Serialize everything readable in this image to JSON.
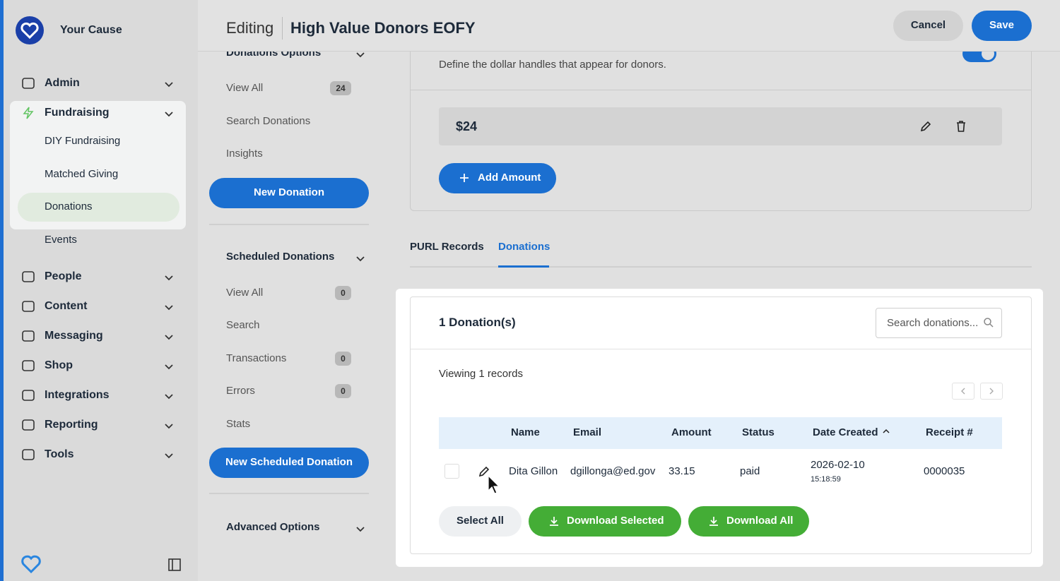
{
  "brand": {
    "name": "Your Cause"
  },
  "nav": [
    {
      "label": "Admin"
    },
    {
      "label": "Fundraising",
      "children": [
        "DIY Fundraising",
        "Matched Giving",
        "Donations",
        "Events"
      ]
    },
    {
      "label": "People"
    },
    {
      "label": "Content"
    },
    {
      "label": "Messaging"
    },
    {
      "label": "Shop"
    },
    {
      "label": "Integrations"
    },
    {
      "label": "Reporting"
    },
    {
      "label": "Tools"
    }
  ],
  "header": {
    "mode": "Editing",
    "title": "High Value Donors EOFY",
    "cancel": "Cancel",
    "save": "Save"
  },
  "subnav": [
    {
      "title": "Donations Options",
      "items": [
        {
          "label": "View All",
          "count": 24
        },
        {
          "label": "Search Donations"
        },
        {
          "label": "Insights"
        }
      ],
      "button": "New Donation"
    },
    {
      "title": "Scheduled Donations",
      "items": [
        {
          "label": "View All",
          "count": 0
        },
        {
          "label": "Search"
        },
        {
          "label": "Transactions",
          "count": 0
        },
        {
          "label": "Errors",
          "count": 0
        },
        {
          "label": "Stats"
        }
      ],
      "button": "New Scheduled Donation"
    },
    {
      "title": "Advanced Options"
    }
  ],
  "handles": {
    "description": "Define the dollar handles that appear for donors.",
    "amounts": [
      "$24"
    ],
    "add_button": "Add Amount"
  },
  "tabs": [
    "PURL Records",
    "Donations"
  ],
  "table": {
    "title": "1 Donation(s)",
    "search_placeholder": "Search donations...",
    "viewing": "Viewing 1 records",
    "columns": [
      "Name",
      "Email",
      "Amount",
      "Status",
      "Date Created",
      "Receipt #"
    ],
    "rows": [
      {
        "name": "Dita Gillon",
        "email": "dgillonga@ed.gov",
        "amount": "33.15",
        "status": "paid",
        "date": "2026-02-10",
        "time": "15:18:59",
        "receipt": "0000035"
      }
    ],
    "buttons": {
      "select_all": "Select All",
      "download_selected": "Download Selected",
      "download_all": "Download All"
    }
  }
}
